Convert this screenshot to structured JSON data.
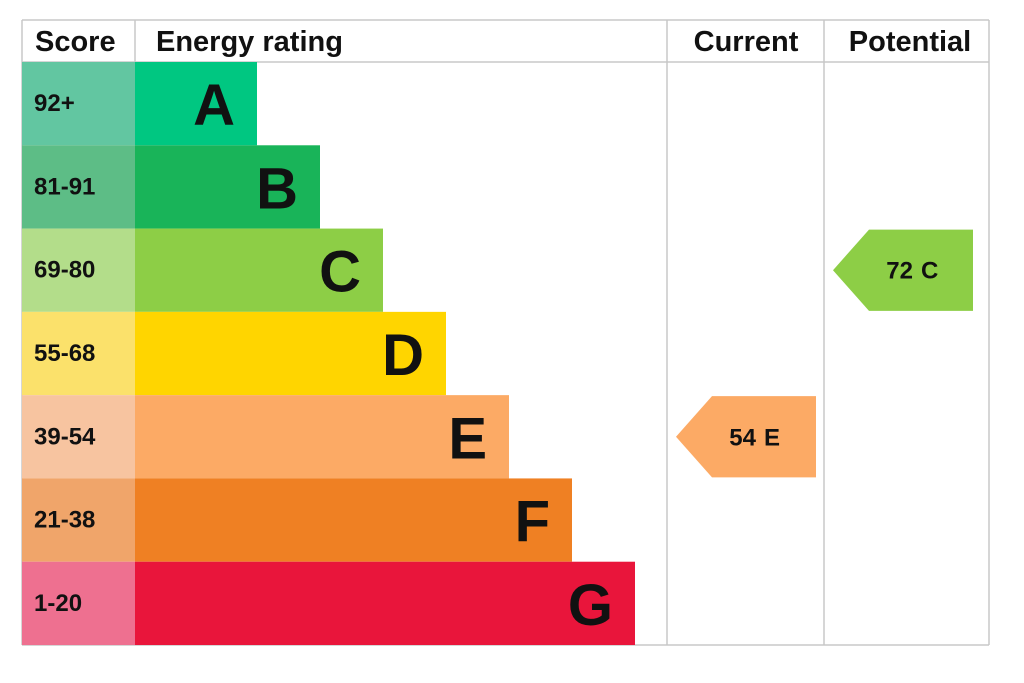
{
  "header": {
    "score": "Score",
    "rating": "Energy rating",
    "current": "Current",
    "potential": "Potential"
  },
  "bands": [
    {
      "range": "92+",
      "letter": "A",
      "color": "#00c781",
      "light": "#62c6a1"
    },
    {
      "range": "81-91",
      "letter": "B",
      "color": "#19b459",
      "light": "#5dbd86"
    },
    {
      "range": "69-80",
      "letter": "C",
      "color": "#8dce46",
      "light": "#b3dd8a"
    },
    {
      "range": "55-68",
      "letter": "D",
      "color": "#ffd500",
      "light": "#fbe16b"
    },
    {
      "range": "39-54",
      "letter": "E",
      "color": "#fcaa65",
      "light": "#f7c4a0"
    },
    {
      "range": "21-38",
      "letter": "F",
      "color": "#ef8023",
      "light": "#f0a56a"
    },
    {
      "range": "1-20",
      "letter": "G",
      "color": "#e9153b",
      "light": "#ee7090"
    }
  ],
  "current": {
    "score": 54,
    "band": "E"
  },
  "potential": {
    "score": 72,
    "band": "C"
  }
}
